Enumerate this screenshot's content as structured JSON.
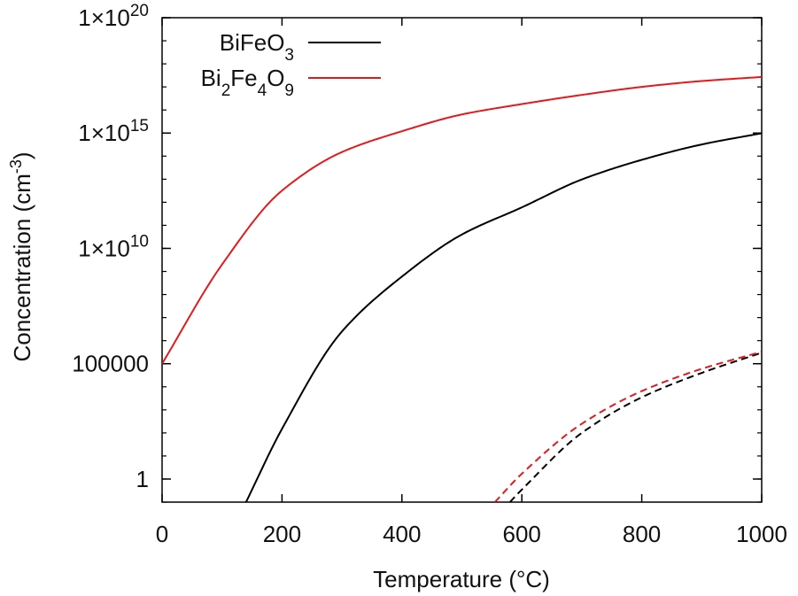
{
  "chart_data": {
    "type": "line",
    "xlabel": "Temperature (°C)",
    "ylabel": "Concentration (cm⁻³)",
    "ylabel_parts": {
      "main": "Concentration (cm",
      "sup": "-3",
      "close": ")"
    },
    "x_scale": "linear",
    "y_scale": "log",
    "xlim": [
      0,
      1000
    ],
    "ylim": [
      0.1,
      1e+20
    ],
    "grid": false,
    "legend_position": "top-left",
    "x_ticks": [
      0,
      200,
      400,
      600,
      800,
      1000
    ],
    "x_tick_labels": [
      "0",
      "200",
      "400",
      "600",
      "800",
      "1000"
    ],
    "y_ticks": [
      1,
      100000,
      10000000000.0,
      1000000000000000.0,
      1e+20
    ],
    "y_tick_labels": [
      {
        "text": "1",
        "base": "1",
        "exp": ""
      },
      {
        "text": "100000",
        "base": "100000",
        "exp": ""
      },
      {
        "text": "1×10^10",
        "base": "1×10",
        "exp": "10"
      },
      {
        "text": "1×10^15",
        "base": "1×10",
        "exp": "15"
      },
      {
        "text": "1×10^20",
        "base": "1×10",
        "exp": "20"
      }
    ],
    "series": [
      {
        "name": "BiFeO3",
        "name_parts": [
          {
            "t": "BiFeO",
            "s": ""
          },
          {
            "t": "3",
            "s": "sub"
          }
        ],
        "color": "#000000",
        "dash": "solid",
        "x": [
          140,
          200,
          300,
          400,
          500,
          600,
          700,
          800,
          900,
          1000
        ],
        "y": [
          0.1,
          150,
          2500000.0,
          600000000.0,
          40000000000.0,
          600000000000.0,
          9700000000000.0,
          69000000000000.0,
          320000000000000.0,
          980000000000000.0
        ]
      },
      {
        "name": "Bi2Fe4O9",
        "name_parts": [
          {
            "t": "Bi",
            "s": ""
          },
          {
            "t": "2",
            "s": "sub"
          },
          {
            "t": "Fe",
            "s": ""
          },
          {
            "t": "4",
            "s": "sub"
          },
          {
            "t": "O",
            "s": ""
          },
          {
            "t": "9",
            "s": "sub"
          }
        ],
        "color": "#e31a1c",
        "dash": "solid",
        "x": [
          0,
          100,
          200,
          300,
          400,
          500,
          600,
          700,
          800,
          900,
          1000
        ],
        "y": [
          100000,
          2000000000.0,
          3200000000000.0,
          150000000000000.0,
          1200000000000000.0,
          6400000000000000.0,
          1.8e+16,
          4.5e+16,
          1e+17,
          1.8e+17,
          2.7e+17
        ]
      },
      {
        "name": "",
        "color": "#000000",
        "dash": "dashed",
        "x": [
          580,
          600,
          700,
          800,
          900,
          1000
        ],
        "y": [
          0.1,
          0.35,
          100,
          3500,
          40000,
          300000
        ]
      },
      {
        "name": "",
        "color": "#e31a1c",
        "dash": "dashed",
        "x": [
          555,
          600,
          700,
          800,
          900,
          1000
        ],
        "y": [
          0.1,
          1.7,
          250,
          6500,
          60000,
          330000
        ]
      }
    ]
  }
}
